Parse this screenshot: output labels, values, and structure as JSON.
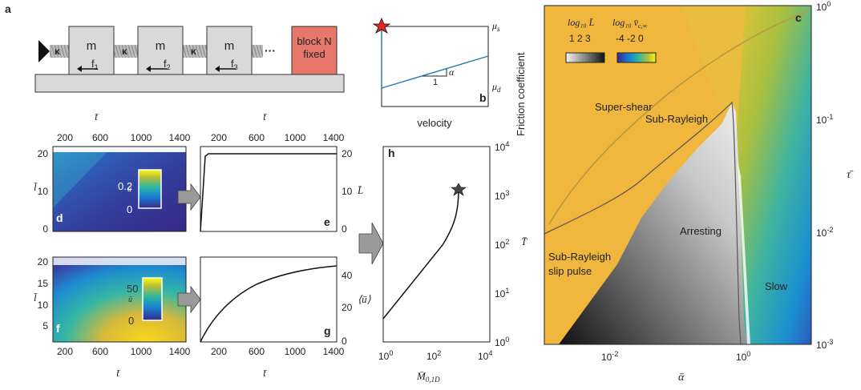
{
  "panel_labels": {
    "a": "a",
    "b": "b",
    "c": "c",
    "d": "d",
    "e": "e",
    "f": "f",
    "g": "g",
    "h": "h"
  },
  "panel_a": {
    "spring_label": "κ",
    "block_label": "m",
    "friction_labels": [
      "f",
      "f",
      "f"
    ],
    "friction_subscripts": [
      "1",
      "2",
      "3"
    ],
    "dots": "···",
    "fixed_block_line1": "block N",
    "fixed_block_line2": "fixed",
    "fixed_block_color": "#e7766b",
    "block_color": "#d9d9d9"
  },
  "panel_b": {
    "xlabel": "velocity",
    "mu_s_main": "μ",
    "mu_s_sub": "s",
    "mu_d_main": "μ",
    "mu_d_sub": "d",
    "slope_run": "1",
    "slope_label": "α",
    "line_color": "#1f77b4",
    "star_color": "#e8251f"
  },
  "panel_c": {
    "ylabel": "Friction coefficient",
    "xlabel": "ᾱ",
    "right_ylabel": "τ̄",
    "left_ylabel": "T̄",
    "x_ticks": [
      "10",
      "10"
    ],
    "x_tick_exps": [
      "-2",
      "0"
    ],
    "y_ticks": [
      "10",
      "10",
      "10",
      "10"
    ],
    "y_tick_exps": [
      "0",
      "-1",
      "-2",
      "-3"
    ],
    "regions": [
      "Super-shear",
      "Sub-Rayleigh",
      "Arresting",
      "Sub-Rayleigh",
      "slip pulse",
      "Slow"
    ],
    "legend_L_title": "log₁₀ L̄",
    "legend_L_ticks": "1 2 3",
    "legend_v_title": "log₁₀ v̄",
    "legend_v_sub": "c,∞",
    "legend_v_ticks": "-4 -2 0",
    "bg_color": "#f0b63e",
    "curve_color": "#b8983f"
  },
  "panel_d": {
    "top_label": "t̄",
    "ylabel": "l̄",
    "x_ticks": [
      "200",
      "600",
      "1000",
      "1400"
    ],
    "y_ticks": [
      "20",
      "10",
      "0"
    ],
    "cbar_label": "ū",
    "cbar_ticks": [
      "0.2",
      "0"
    ]
  },
  "panel_e": {
    "top_label": "t̄",
    "x_ticks": [
      "200",
      "600",
      "1000",
      "1400"
    ],
    "y_ticks": [
      "20",
      "10",
      "0"
    ],
    "ylabel": "L̄"
  },
  "panel_f": {
    "ylabel": "l̄",
    "xlabel": "t̄",
    "x_ticks": [
      "200",
      "600",
      "1000",
      "1400"
    ],
    "y_ticks": [
      "20",
      "15",
      "10",
      "5"
    ],
    "cbar_label": "ū",
    "cbar_ticks": [
      "50",
      "0"
    ]
  },
  "panel_g": {
    "xlabel": "t̄",
    "x_ticks": [
      "200",
      "600",
      "1000",
      "1400"
    ],
    "y_ticks": [
      "40",
      "20",
      "0"
    ],
    "ylabel": "⟨ū⟩"
  },
  "panel_h": {
    "xlabel_main": "M̄",
    "xlabel_sub": "0,1D",
    "ylabel": "T̄",
    "x_ticks": [
      "10",
      "10",
      "10"
    ],
    "x_tick_exps": [
      "0",
      "2",
      "4"
    ],
    "y_ticks": [
      "10",
      "10",
      "10",
      "10",
      "10"
    ],
    "y_tick_exps": [
      "4",
      "3",
      "2",
      "1",
      "0"
    ]
  }
}
